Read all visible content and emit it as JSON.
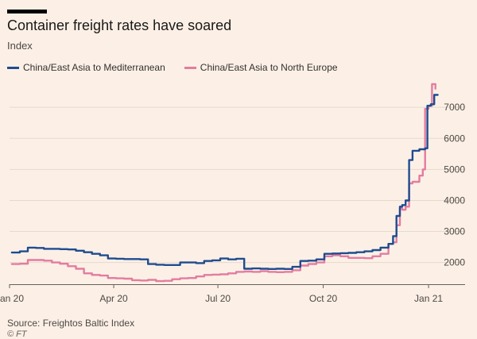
{
  "header": {
    "title": "Container freight rates have soared",
    "subtitle": "Index"
  },
  "footer": {
    "source": "Source: Freightos Baltic Index",
    "credit": "© FT"
  },
  "colors": {
    "background": "#fcf0e6",
    "mediterranean": "#1f4c8f",
    "north_europe": "#e37ca0",
    "grid": "#e6d9ce"
  },
  "chart_data": {
    "type": "line",
    "title": "Container freight rates have soared",
    "subtitle": "Index",
    "xlabel": "",
    "ylabel": "Index",
    "xlim": [
      "2020-01-01",
      "2021-01-10"
    ],
    "ylim": [
      1300,
      7900
    ],
    "y_ticks": [
      2000,
      3000,
      4000,
      5000,
      6000,
      7000
    ],
    "x_ticks": [
      {
        "label": "Jan 20",
        "date": "2020-01-01"
      },
      {
        "label": "Apr 20",
        "date": "2020-04-01"
      },
      {
        "label": "Jul 20",
        "date": "2020-07-01"
      },
      {
        "label": "Oct 20",
        "date": "2020-10-01"
      },
      {
        "label": "Jan 21",
        "date": "2021-01-01"
      }
    ],
    "grid": "horizontal",
    "legend_position": "top-left",
    "series": [
      {
        "name": "China/East Asia to Mediterranean",
        "color": "#1f4c8f",
        "points": [
          [
            "2020-01-03",
            2320
          ],
          [
            "2020-01-10",
            2360
          ],
          [
            "2020-01-17",
            2480
          ],
          [
            "2020-01-24",
            2470
          ],
          [
            "2020-01-31",
            2440
          ],
          [
            "2020-02-07",
            2440
          ],
          [
            "2020-02-14",
            2430
          ],
          [
            "2020-02-21",
            2420
          ],
          [
            "2020-02-28",
            2380
          ],
          [
            "2020-03-06",
            2330
          ],
          [
            "2020-03-13",
            2280
          ],
          [
            "2020-03-20",
            2230
          ],
          [
            "2020-03-27",
            2130
          ],
          [
            "2020-04-03",
            2120
          ],
          [
            "2020-04-10",
            2110
          ],
          [
            "2020-04-17",
            2110
          ],
          [
            "2020-04-24",
            2100
          ],
          [
            "2020-05-01",
            1950
          ],
          [
            "2020-05-08",
            1930
          ],
          [
            "2020-05-15",
            1920
          ],
          [
            "2020-05-22",
            1920
          ],
          [
            "2020-05-29",
            2000
          ],
          [
            "2020-06-05",
            2000
          ],
          [
            "2020-06-12",
            1980
          ],
          [
            "2020-06-19",
            2050
          ],
          [
            "2020-06-26",
            2070
          ],
          [
            "2020-07-03",
            2130
          ],
          [
            "2020-07-10",
            2100
          ],
          [
            "2020-07-17",
            2120
          ],
          [
            "2020-07-24",
            1800
          ],
          [
            "2020-07-31",
            1810
          ],
          [
            "2020-08-07",
            1800
          ],
          [
            "2020-08-14",
            1790
          ],
          [
            "2020-08-21",
            1800
          ],
          [
            "2020-08-28",
            1790
          ],
          [
            "2020-09-04",
            1860
          ],
          [
            "2020-09-11",
            2050
          ],
          [
            "2020-09-18",
            2060
          ],
          [
            "2020-09-25",
            2100
          ],
          [
            "2020-10-02",
            2280
          ],
          [
            "2020-10-09",
            2290
          ],
          [
            "2020-10-16",
            2300
          ],
          [
            "2020-10-23",
            2310
          ],
          [
            "2020-10-30",
            2330
          ],
          [
            "2020-11-06",
            2360
          ],
          [
            "2020-11-13",
            2400
          ],
          [
            "2020-11-20",
            2480
          ],
          [
            "2020-11-27",
            2600
          ],
          [
            "2020-12-01",
            2850
          ],
          [
            "2020-12-04",
            3500
          ],
          [
            "2020-12-07",
            3800
          ],
          [
            "2020-12-09",
            3850
          ],
          [
            "2020-12-12",
            4000
          ],
          [
            "2020-12-15",
            5300
          ],
          [
            "2020-12-18",
            5600
          ],
          [
            "2020-12-24",
            5650
          ],
          [
            "2020-12-29",
            5680
          ],
          [
            "2020-12-31",
            7050
          ],
          [
            "2021-01-03",
            7100
          ],
          [
            "2021-01-06",
            7400
          ],
          [
            "2021-01-09",
            7400
          ]
        ]
      },
      {
        "name": "China/East Asia to North Europe",
        "color": "#e37ca0",
        "points": [
          [
            "2020-01-03",
            1950
          ],
          [
            "2020-01-10",
            1960
          ],
          [
            "2020-01-17",
            2080
          ],
          [
            "2020-01-24",
            2080
          ],
          [
            "2020-01-31",
            2060
          ],
          [
            "2020-02-07",
            2000
          ],
          [
            "2020-02-14",
            1960
          ],
          [
            "2020-02-21",
            1880
          ],
          [
            "2020-02-28",
            1800
          ],
          [
            "2020-03-06",
            1650
          ],
          [
            "2020-03-13",
            1600
          ],
          [
            "2020-03-20",
            1580
          ],
          [
            "2020-03-27",
            1500
          ],
          [
            "2020-04-03",
            1490
          ],
          [
            "2020-04-10",
            1480
          ],
          [
            "2020-04-17",
            1430
          ],
          [
            "2020-04-24",
            1420
          ],
          [
            "2020-05-01",
            1440
          ],
          [
            "2020-05-08",
            1400
          ],
          [
            "2020-05-15",
            1410
          ],
          [
            "2020-05-22",
            1460
          ],
          [
            "2020-05-29",
            1490
          ],
          [
            "2020-06-05",
            1500
          ],
          [
            "2020-06-12",
            1550
          ],
          [
            "2020-06-19",
            1600
          ],
          [
            "2020-06-26",
            1610
          ],
          [
            "2020-07-03",
            1620
          ],
          [
            "2020-07-10",
            1650
          ],
          [
            "2020-07-17",
            1700
          ],
          [
            "2020-07-24",
            1710
          ],
          [
            "2020-07-31",
            1700
          ],
          [
            "2020-08-07",
            1720
          ],
          [
            "2020-08-14",
            1700
          ],
          [
            "2020-08-21",
            1690
          ],
          [
            "2020-08-28",
            1700
          ],
          [
            "2020-09-04",
            1750
          ],
          [
            "2020-09-11",
            1900
          ],
          [
            "2020-09-18",
            1950
          ],
          [
            "2020-09-25",
            2000
          ],
          [
            "2020-10-02",
            2200
          ],
          [
            "2020-10-09",
            2230
          ],
          [
            "2020-10-16",
            2200
          ],
          [
            "2020-10-23",
            2150
          ],
          [
            "2020-10-30",
            2150
          ],
          [
            "2020-11-06",
            2140
          ],
          [
            "2020-11-13",
            2200
          ],
          [
            "2020-11-20",
            2280
          ],
          [
            "2020-11-27",
            2600
          ],
          [
            "2020-12-01",
            2650
          ],
          [
            "2020-12-04",
            3200
          ],
          [
            "2020-12-07",
            3750
          ],
          [
            "2020-12-09",
            3700
          ],
          [
            "2020-12-12",
            3800
          ],
          [
            "2020-12-15",
            4550
          ],
          [
            "2020-12-18",
            4600
          ],
          [
            "2020-12-24",
            4800
          ],
          [
            "2020-12-27",
            5000
          ],
          [
            "2020-12-29",
            6950
          ],
          [
            "2021-01-01",
            7050
          ],
          [
            "2021-01-04",
            7750
          ],
          [
            "2021-01-07",
            7600
          ]
        ]
      }
    ]
  }
}
